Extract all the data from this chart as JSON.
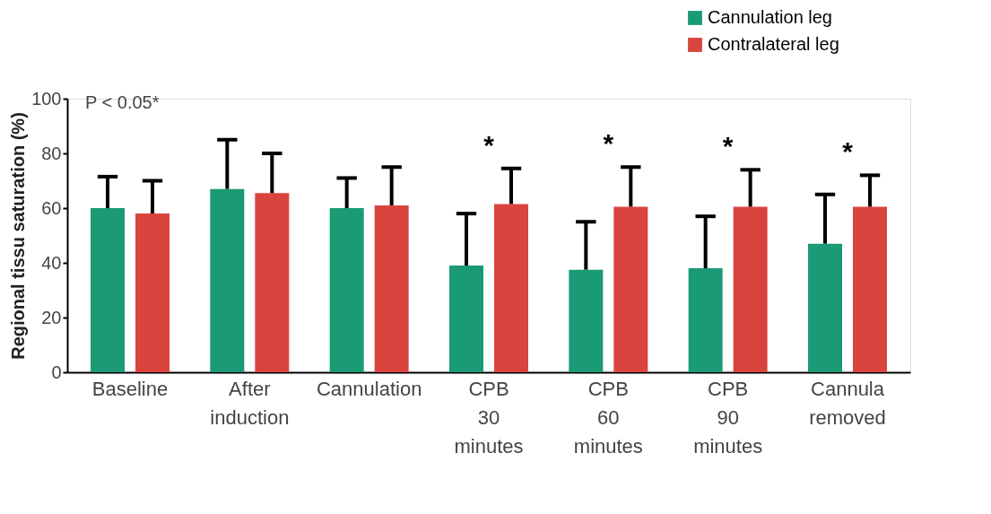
{
  "chart_data": {
    "type": "bar",
    "ylabel": "Regional tissu saturation (%)",
    "categories": [
      "Baseline",
      "After induction",
      "Cannulation",
      "CPB 30 minutes",
      "CPB 60 minutes",
      "CPB 90 minutes",
      "Cannula removed"
    ],
    "series": [
      {
        "name": "Cannulation leg",
        "color": "#1a9a75",
        "values": [
          60,
          67,
          60,
          39,
          37.5,
          38,
          47
        ],
        "errors": [
          [
            60,
            71.5
          ],
          [
            67,
            85
          ],
          [
            60,
            71
          ],
          [
            39,
            58
          ],
          [
            37.5,
            55
          ],
          [
            38,
            57
          ],
          [
            47,
            65
          ]
        ]
      },
      {
        "name": "Contralateral leg",
        "color": "#d9443f",
        "values": [
          58,
          65.5,
          61,
          61.5,
          60.5,
          60.5,
          60.5
        ],
        "errors": [
          [
            58,
            70
          ],
          [
            65.5,
            80
          ],
          [
            61,
            75
          ],
          [
            61.5,
            74.5
          ],
          [
            60.5,
            75
          ],
          [
            60.5,
            74
          ],
          [
            60.5,
            72
          ]
        ]
      }
    ],
    "ylim": [
      0,
      100
    ],
    "yticks": [
      0,
      20,
      40,
      60,
      80,
      100
    ],
    "grid": false,
    "legend": "top right",
    "annotations": [
      "P < 0.05*",
      "*",
      "*",
      "*",
      "*"
    ]
  }
}
